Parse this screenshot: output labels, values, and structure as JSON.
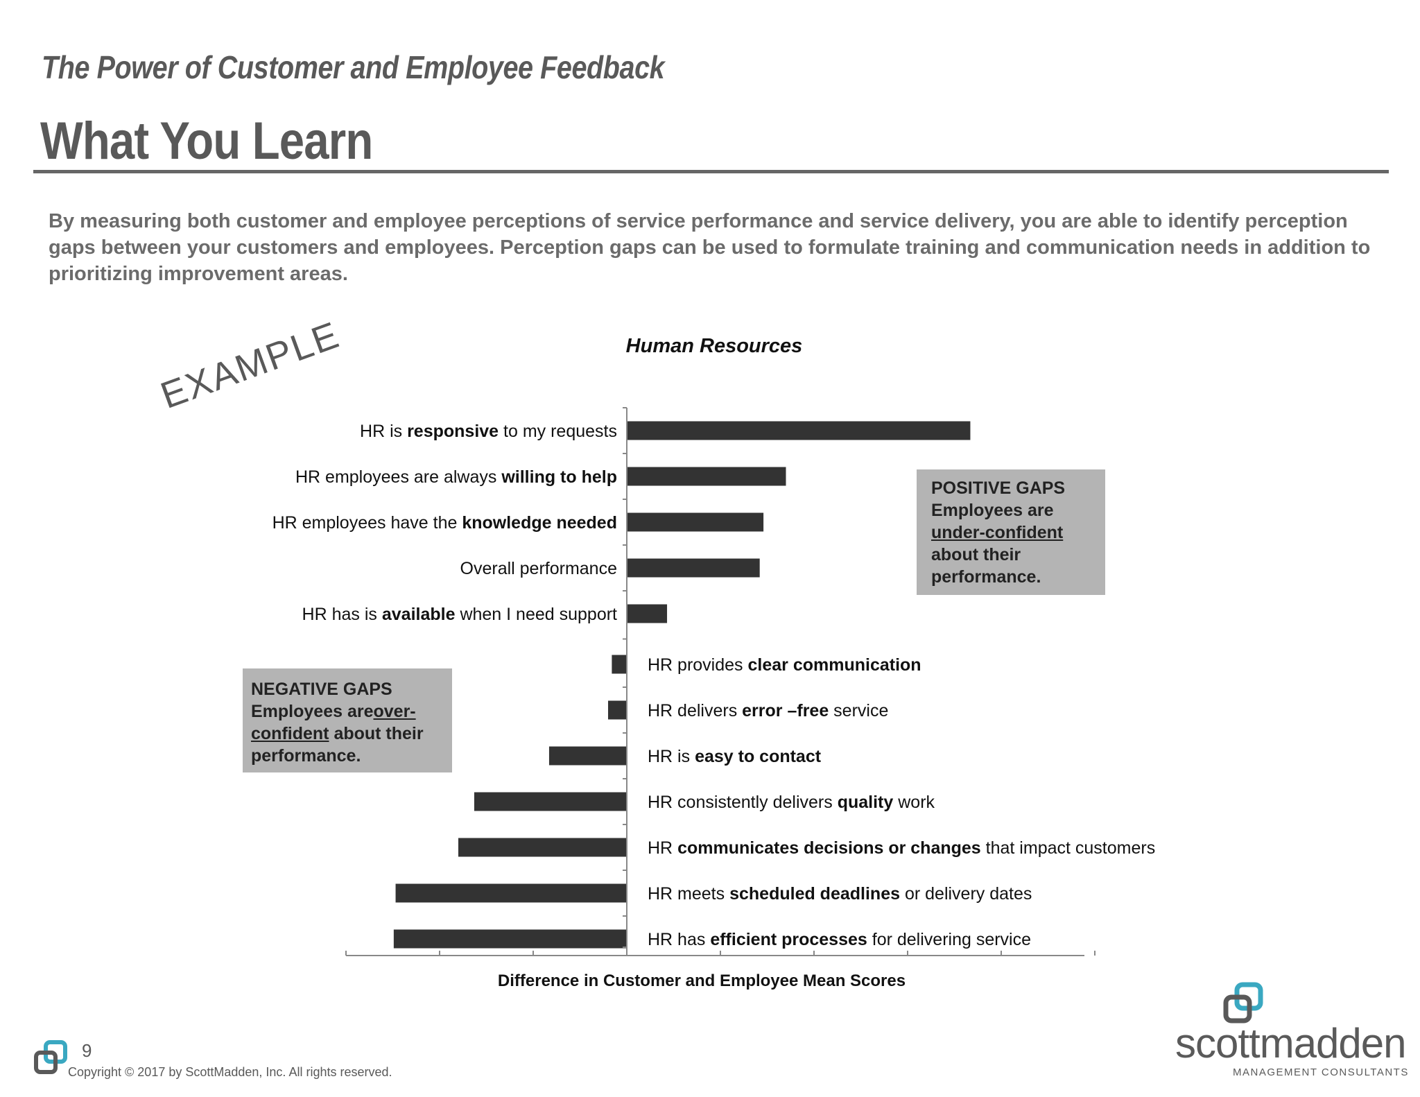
{
  "header": {
    "subtitle": "The Power of Customer and Employee Feedback",
    "title": "What You Learn"
  },
  "intro_text": "By measuring both customer and employee perceptions of service performance and service delivery, you are able to identify perception gaps between your customers and employees. Perception gaps can be used to formulate training and communication needs in addition to prioritizing improvement areas.",
  "watermark": "EXAMPLE",
  "callouts": {
    "positive": {
      "heading": "POSITIVE GAPS",
      "line_a": "Employees are",
      "underlined": "under-confident",
      "line_c": "about their",
      "line_d": "performance."
    },
    "negative": {
      "heading": "NEGATIVE GAPS",
      "line_a": "Employees are",
      "underlined_a": "over-",
      "underlined_b": "confident",
      "line_b_rest": " about their",
      "line_c": "performance."
    }
  },
  "chart_data": {
    "type": "bar",
    "orientation": "horizontal",
    "title": "Human Resources",
    "xlabel": "Difference in Customer and Employee Mean Scores",
    "ylabel": "",
    "xlim": [
      -3,
      5
    ],
    "x_ticks_count": 9,
    "x_tick_labels_shown": false,
    "grid": false,
    "bar_color": "#333333",
    "categories": [
      {
        "parts": [
          {
            "t": "HR is ",
            "b": false
          },
          {
            "t": "responsive",
            "b": true
          },
          {
            "t": " to my requests",
            "b": false
          }
        ]
      },
      {
        "parts": [
          {
            "t": "HR employees are always ",
            "b": false
          },
          {
            "t": "willing to help",
            "b": true
          }
        ]
      },
      {
        "parts": [
          {
            "t": "HR employees have the ",
            "b": false
          },
          {
            "t": "knowledge needed",
            "b": true
          }
        ]
      },
      {
        "parts": [
          {
            "t": "Overall performance",
            "b": false
          }
        ]
      },
      {
        "parts": [
          {
            "t": "HR has is ",
            "b": false
          },
          {
            "t": "available",
            "b": true
          },
          {
            "t": " when I need support",
            "b": false
          }
        ]
      },
      {
        "parts": [
          {
            "t": "HR provides ",
            "b": false
          },
          {
            "t": "clear communication",
            "b": true
          }
        ]
      },
      {
        "parts": [
          {
            "t": "HR delivers ",
            "b": false
          },
          {
            "t": "error –free",
            "b": true
          },
          {
            "t": " service",
            "b": false
          }
        ]
      },
      {
        "parts": [
          {
            "t": "HR is ",
            "b": false
          },
          {
            "t": "easy to contact",
            "b": true
          }
        ]
      },
      {
        "parts": [
          {
            "t": "HR consistently delivers ",
            "b": false
          },
          {
            "t": "quality",
            "b": true
          },
          {
            "t": " work",
            "b": false
          }
        ]
      },
      {
        "parts": [
          {
            "t": "HR ",
            "b": false
          },
          {
            "t": "communicates decisions or changes",
            "b": true
          },
          {
            "t": " that impact customers",
            "b": false
          }
        ]
      },
      {
        "parts": [
          {
            "t": "HR meets ",
            "b": false
          },
          {
            "t": "scheduled deadlines",
            "b": true
          },
          {
            "t": " or delivery dates",
            "b": false
          }
        ]
      },
      {
        "parts": [
          {
            "t": "HR has ",
            "b": false
          },
          {
            "t": "efficient processes",
            "b": true
          },
          {
            "t": " for delivering service",
            "b": false
          }
        ]
      }
    ],
    "values": [
      3.67,
      1.7,
      1.46,
      1.42,
      0.43,
      -0.16,
      -0.2,
      -0.83,
      -1.63,
      -1.8,
      -2.47,
      -2.49
    ]
  },
  "footer": {
    "page_number": "9",
    "copyright": "Copyright © 2017 by ScottMadden, Inc. All rights reserved."
  },
  "logo": {
    "wordmark": "scottmadden",
    "tagline": "MANAGEMENT CONSULTANTS",
    "accent_color": "#3aa8c1",
    "dark_color": "#595959"
  }
}
